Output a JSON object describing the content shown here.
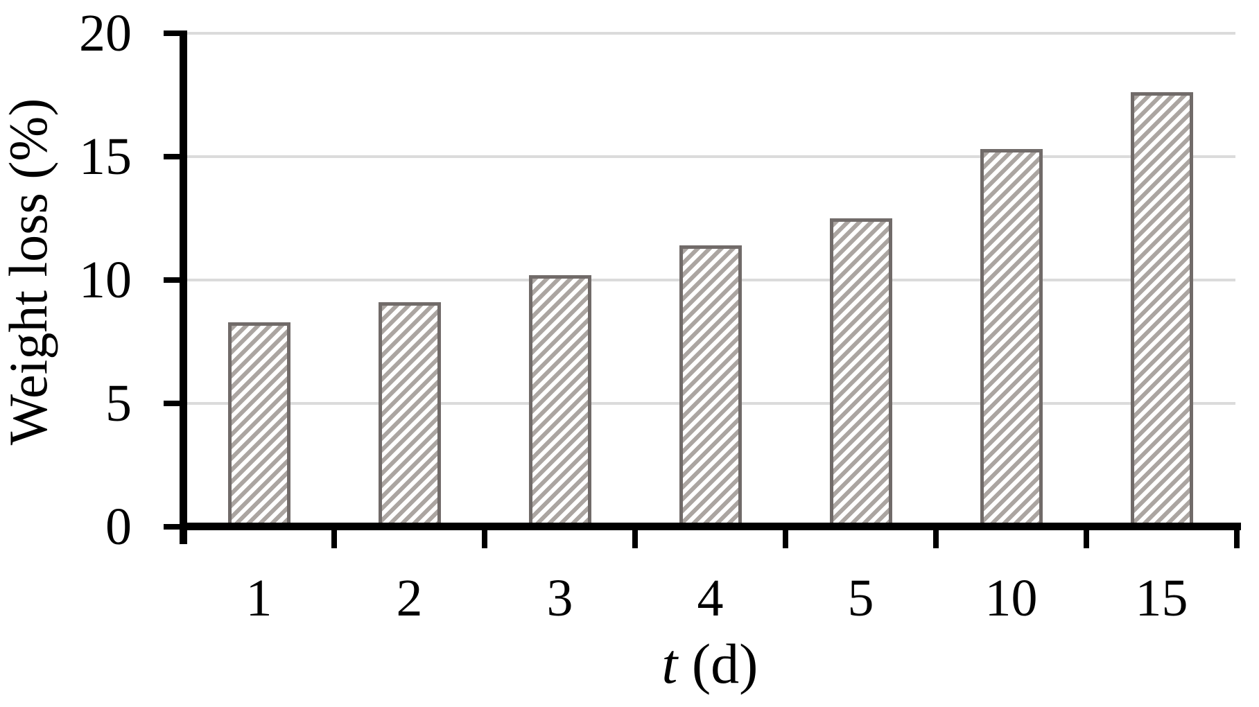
{
  "chart_data": {
    "type": "bar",
    "title": "",
    "xlabel": "t (d)",
    "xlabel_italic": "t",
    "xlabel_rest": " (d)",
    "ylabel": "Weight loss (%)",
    "categories": [
      "1",
      "2",
      "3",
      "4",
      "5",
      "10",
      "15"
    ],
    "values": [
      8.3,
      9.1,
      10.2,
      11.4,
      12.5,
      15.3,
      17.6
    ],
    "ylim": [
      0,
      20
    ],
    "yticks": [
      0,
      5,
      10,
      15,
      20
    ],
    "grid": "horizontal gridlines at 5, 10, 15, 20",
    "legend": "none",
    "bar_fill": "white with gray forward-diagonal hatch stripes",
    "colors": {
      "bar_hatch": "#ABA5A1",
      "bar_border": "#716B69",
      "bar_background": "#FFFFFF",
      "gridline": "#DBDBDB",
      "axis": "#000000",
      "text": "#000000",
      "background": "#FFFFFF"
    }
  }
}
